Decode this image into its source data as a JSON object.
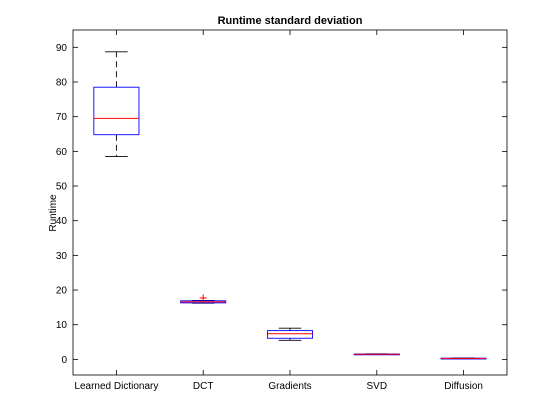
{
  "chart_data": {
    "type": "box",
    "title": "Runtime standard deviation",
    "xlabel": "",
    "ylabel": "Runtime",
    "ylim": [
      -4.5,
      95
    ],
    "yticks": [
      0,
      10,
      20,
      30,
      40,
      50,
      60,
      70,
      80,
      90
    ],
    "grid": false,
    "categories": [
      "Learned Dictionary",
      "DCT",
      "Gradients",
      "SVD",
      "Diffusion"
    ],
    "boxes": [
      {
        "category": "Learned Dictionary",
        "whisker_low": 58.5,
        "q1": 64.8,
        "median": 69.5,
        "q3": 78.5,
        "whisker_high": 88.7,
        "outliers": []
      },
      {
        "category": "DCT",
        "whisker_low": 16.2,
        "q1": 16.3,
        "median": 16.6,
        "q3": 16.9,
        "whisker_high": 17.0,
        "outliers": [
          17.7
        ]
      },
      {
        "category": "Gradients",
        "whisker_low": 5.5,
        "q1": 6.1,
        "median": 7.4,
        "q3": 8.3,
        "whisker_high": 9.0,
        "outliers": []
      },
      {
        "category": "SVD",
        "whisker_low": 1.4,
        "q1": 1.45,
        "median": 1.5,
        "q3": 1.55,
        "whisker_high": 1.6,
        "outliers": []
      },
      {
        "category": "Diffusion",
        "whisker_low": 0.2,
        "q1": 0.25,
        "median": 0.3,
        "q3": 0.35,
        "whisker_high": 0.4,
        "outliers": []
      }
    ],
    "colors": {
      "box": "#0000ff",
      "median": "#ff0000",
      "whisker": "#000000",
      "outlier": "#ff0000",
      "axes": "#000000"
    }
  }
}
